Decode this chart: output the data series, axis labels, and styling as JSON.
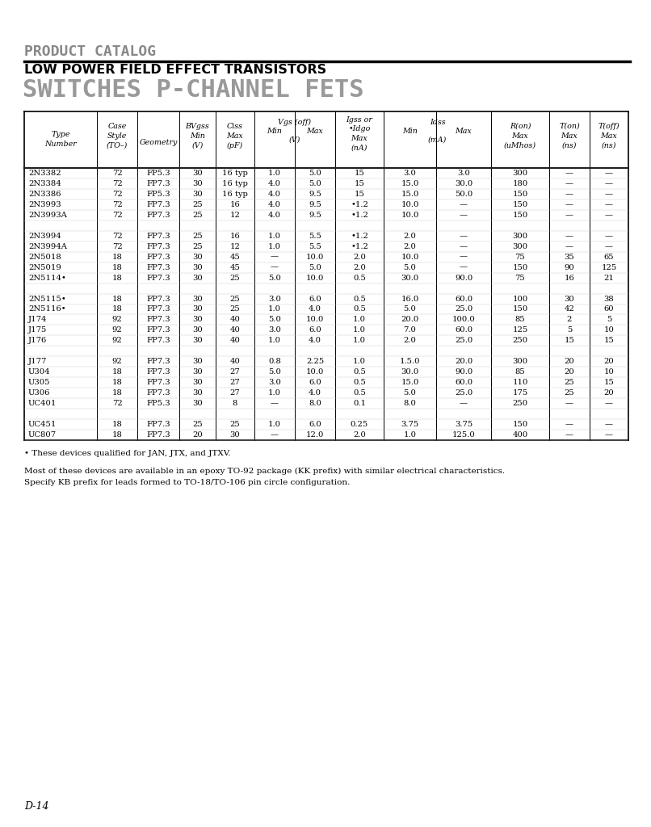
{
  "title1": "PRODUCT CATALOG",
  "title2": "LOW POWER FIELD EFFECT TRANSISTORS",
  "title3": "SWITCHES P-CHANNEL FETS",
  "page_label": "D-14",
  "footnote1": "• These devices qualified for JAN, JTX, and JTXV.",
  "footnote2": "Most of these devices are available in an epoxy TO-92 package (KK prefix) with similar electrical characteristics.",
  "footnote3": "Specify KB prefix for leads formed to TO-18/TO-106 pin circle configuration.",
  "rows": [
    [
      "2N3382",
      "72",
      "FP5.3",
      "30",
      "16 typ",
      "1.0",
      "5.0",
      "15",
      "3.0",
      "3.0",
      "300",
      "—",
      "—"
    ],
    [
      "2N3384",
      "72",
      "FP7.3",
      "30",
      "16 typ",
      "4.0",
      "5.0",
      "15",
      "15.0",
      "30.0",
      "180",
      "—",
      "—"
    ],
    [
      "2N3386",
      "72",
      "FP5.3",
      "30",
      "16 typ",
      "4.0",
      "9.5",
      "15",
      "15.0",
      "50.0",
      "150",
      "—",
      "—"
    ],
    [
      "2N3993",
      "72",
      "FP7.3",
      "25",
      "16",
      "4.0",
      "9.5",
      "•1.2",
      "10.0",
      "—",
      "150",
      "—",
      "—"
    ],
    [
      "2N3993A",
      "72",
      "FP7.3",
      "25",
      "12",
      "4.0",
      "9.5",
      "•1.2",
      "10.0",
      "—",
      "150",
      "—",
      "—"
    ],
    [
      "",
      "",
      "",
      "",
      "",
      "",
      "",
      "",
      "",
      "",
      "",
      "",
      ""
    ],
    [
      "2N3994",
      "72",
      "FP7.3",
      "25",
      "16",
      "1.0",
      "5.5",
      "•1.2",
      "2.0",
      "—",
      "300",
      "—",
      "—"
    ],
    [
      "2N3994A",
      "72",
      "FP7.3",
      "25",
      "12",
      "1.0",
      "5.5",
      "•1.2",
      "2.0",
      "—",
      "300",
      "—",
      "—"
    ],
    [
      "2N5018",
      "18",
      "FP7.3",
      "30",
      "45",
      "—",
      "10.0",
      "2.0",
      "10.0",
      "—",
      "75",
      "35",
      "65"
    ],
    [
      "2N5019",
      "18",
      "FP7.3",
      "30",
      "45",
      "—",
      "5.0",
      "2.0",
      "5.0",
      "—",
      "150",
      "90",
      "125"
    ],
    [
      "2N5114•",
      "18",
      "FP7.3",
      "30",
      "25",
      "5.0",
      "10.0",
      "0.5",
      "30.0",
      "90.0",
      "75",
      "16",
      "21"
    ],
    [
      "",
      "",
      "",
      "",
      "",
      "",
      "",
      "",
      "",
      "",
      "",
      "",
      ""
    ],
    [
      "2N5115•",
      "18",
      "FP7.3",
      "30",
      "25",
      "3.0",
      "6.0",
      "0.5",
      "16.0",
      "60.0",
      "100",
      "30",
      "38"
    ],
    [
      "2N5116•",
      "18",
      "FP7.3",
      "30",
      "25",
      "1.0",
      "4.0",
      "0.5",
      "5.0",
      "25.0",
      "150",
      "42",
      "60"
    ],
    [
      "J174",
      "92",
      "FP7.3",
      "30",
      "40",
      "5.0",
      "10.0",
      "1.0",
      "20.0",
      "100.0",
      "85",
      "2",
      "5"
    ],
    [
      "J175",
      "92",
      "FP7.3",
      "30",
      "40",
      "3.0",
      "6.0",
      "1.0",
      "7.0",
      "60.0",
      "125",
      "5",
      "10"
    ],
    [
      "J176",
      "92",
      "FP7.3",
      "30",
      "40",
      "1.0",
      "4.0",
      "1.0",
      "2.0",
      "25.0",
      "250",
      "15",
      "15"
    ],
    [
      "",
      "",
      "",
      "",
      "",
      "",
      "",
      "",
      "",
      "",
      "",
      "",
      ""
    ],
    [
      "J177",
      "92",
      "FP7.3",
      "30",
      "40",
      "0.8",
      "2.25",
      "1.0",
      "1.5.0",
      "20.0",
      "300",
      "20",
      "20"
    ],
    [
      "U304",
      "18",
      "FP7.3",
      "30",
      "27",
      "5.0",
      "10.0",
      "0.5",
      "30.0",
      "90.0",
      "85",
      "20",
      "10"
    ],
    [
      "U305",
      "18",
      "FP7.3",
      "30",
      "27",
      "3.0",
      "6.0",
      "0.5",
      "15.0",
      "60.0",
      "110",
      "25",
      "15"
    ],
    [
      "U306",
      "18",
      "FP7.3",
      "30",
      "27",
      "1.0",
      "4.0",
      "0.5",
      "5.0",
      "25.0",
      "175",
      "25",
      "20"
    ],
    [
      "UC401",
      "72",
      "FP5.3",
      "30",
      "8",
      "—",
      "8.0",
      "0.1",
      "8.0",
      "—",
      "250",
      "—",
      "—"
    ],
    [
      "",
      "",
      "",
      "",
      "",
      "",
      "",
      "",
      "",
      "",
      "",
      "",
      ""
    ],
    [
      "UC451",
      "18",
      "FP7.3",
      "25",
      "25",
      "1.0",
      "6.0",
      "0.25",
      "3.75",
      "3.75",
      "150",
      "—",
      "—"
    ],
    [
      "UC807",
      "18",
      "FP7.3",
      "20",
      "30",
      "—",
      "12.0",
      "2.0",
      "1.0",
      "125.0",
      "400",
      "—",
      "—"
    ]
  ]
}
